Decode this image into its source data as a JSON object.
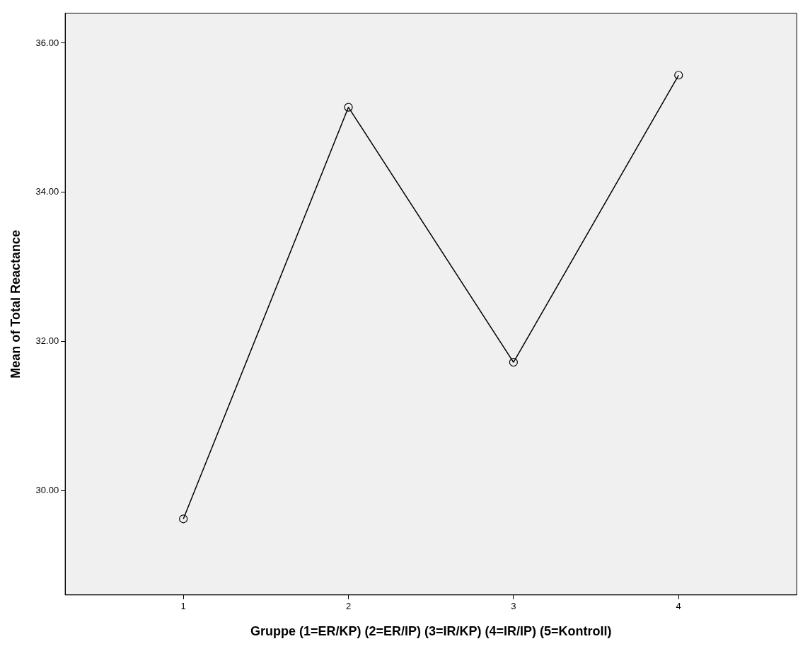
{
  "chart_data": {
    "type": "line",
    "xlabel": "Gruppe (1=ER/KP) (2=ER/IP) (3=IR/KP) (4=IR/IP) (5=Kontroll)",
    "ylabel": "Mean of Total Reactance",
    "x": [
      1,
      2,
      3,
      4
    ],
    "series": [
      {
        "color": "#000000",
        "values": [
          29.62,
          35.14,
          31.72,
          35.57
        ]
      }
    ],
    "xlim": [
      0.284,
      4.716
    ],
    "xticks": [
      1,
      2,
      3,
      4
    ],
    "ylim": [
      28.6,
      36.4
    ],
    "yticks": [
      {
        "value": 30,
        "label": "30.00"
      },
      {
        "value": 32,
        "label": "32.00"
      },
      {
        "value": 34,
        "label": "34.00"
      },
      {
        "value": 36,
        "label": "36.00"
      }
    ],
    "grid": false,
    "legend": false,
    "marker": "circle",
    "line_style": "solid"
  }
}
